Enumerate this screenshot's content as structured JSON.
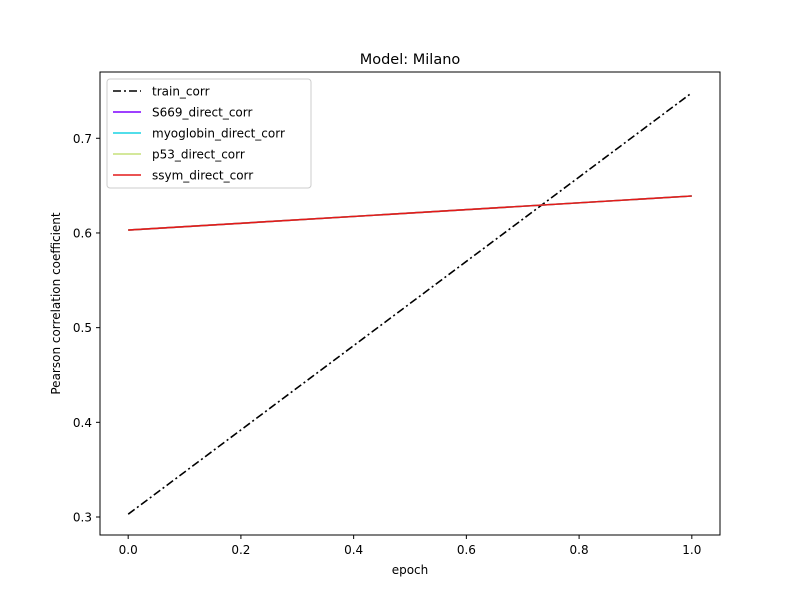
{
  "chart_data": {
    "type": "line",
    "title": "Model: Milano",
    "xlabel": "epoch",
    "ylabel": "Pearson correlation coefficient",
    "xlim": [
      -0.05,
      1.05
    ],
    "ylim": [
      0.281,
      0.77
    ],
    "xticks": [
      0.0,
      0.2,
      0.4,
      0.6,
      0.8,
      1.0
    ],
    "xtick_labels": [
      "0.0",
      "0.2",
      "0.4",
      "0.6",
      "0.8",
      "1.0"
    ],
    "yticks": [
      0.3,
      0.4,
      0.5,
      0.6,
      0.7
    ],
    "ytick_labels": [
      "0.3",
      "0.4",
      "0.5",
      "0.6",
      "0.7"
    ],
    "grid": false,
    "legend_position": "upper-left",
    "series": [
      {
        "name": "train_corr",
        "x": [
          0.0,
          1.0
        ],
        "y": [
          0.303,
          0.748
        ],
        "color": "#000000",
        "dash": "dashdot"
      },
      {
        "name": "S669_direct_corr",
        "x": [
          0.0,
          1.0
        ],
        "y": [
          0.603,
          0.639
        ],
        "color": "#7f00ff",
        "dash": "solid"
      },
      {
        "name": "myoglobin_direct_corr",
        "x": [
          0.0,
          1.0
        ],
        "y": [
          0.603,
          0.639
        ],
        "color": "#19d3e3",
        "dash": "solid"
      },
      {
        "name": "p53_direct_corr",
        "x": [
          0.0,
          1.0
        ],
        "y": [
          0.603,
          0.639
        ],
        "color": "#c5e07a",
        "dash": "solid"
      },
      {
        "name": "ssym_direct_corr",
        "x": [
          0.0,
          1.0
        ],
        "y": [
          0.603,
          0.639
        ],
        "color": "#e31a1a",
        "dash": "solid"
      }
    ]
  }
}
